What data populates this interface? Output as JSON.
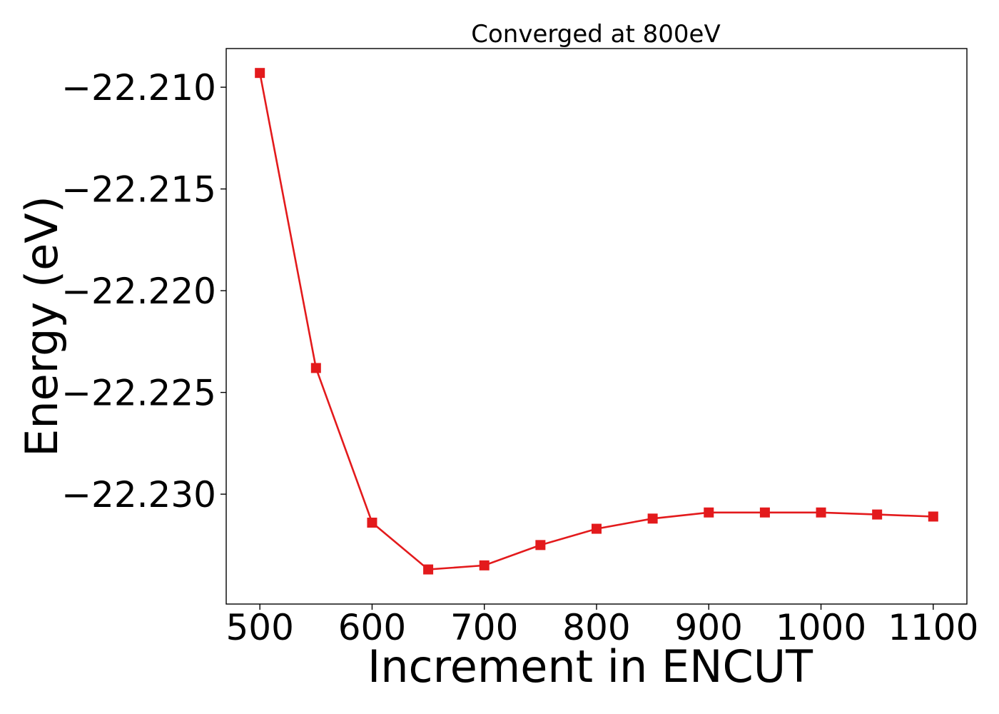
{
  "chart_data": {
    "type": "line",
    "title": "Converged at 800eV",
    "xlabel": "Increment in ENCUT",
    "ylabel": "Energy (eV)",
    "x": [
      500,
      550,
      600,
      650,
      700,
      750,
      800,
      850,
      900,
      950,
      1000,
      1050,
      1100
    ],
    "series": [
      {
        "values": [
          -22.2093,
          -22.2238,
          -22.2314,
          -22.2337,
          -22.2335,
          -22.2325,
          -22.2317,
          -22.2312,
          -22.2309,
          -22.2309,
          -22.2309,
          -22.231,
          -22.2311
        ],
        "color": "#e31a1c",
        "marker": "square"
      }
    ],
    "xlim": [
      470,
      1130
    ],
    "ylim": [
      -22.2354,
      -22.2081
    ],
    "xticks": [
      500,
      600,
      700,
      800,
      900,
      1000,
      1100
    ],
    "yticks": [
      -22.21,
      -22.215,
      -22.22,
      -22.225,
      -22.23
    ],
    "xtick_labels": [
      "500",
      "600",
      "700",
      "800",
      "900",
      "1000",
      "1100"
    ],
    "ytick_labels": [
      "−22.210",
      "−22.215",
      "−22.220",
      "−22.225",
      "−22.230"
    ],
    "grid": false,
    "legend": "none"
  }
}
